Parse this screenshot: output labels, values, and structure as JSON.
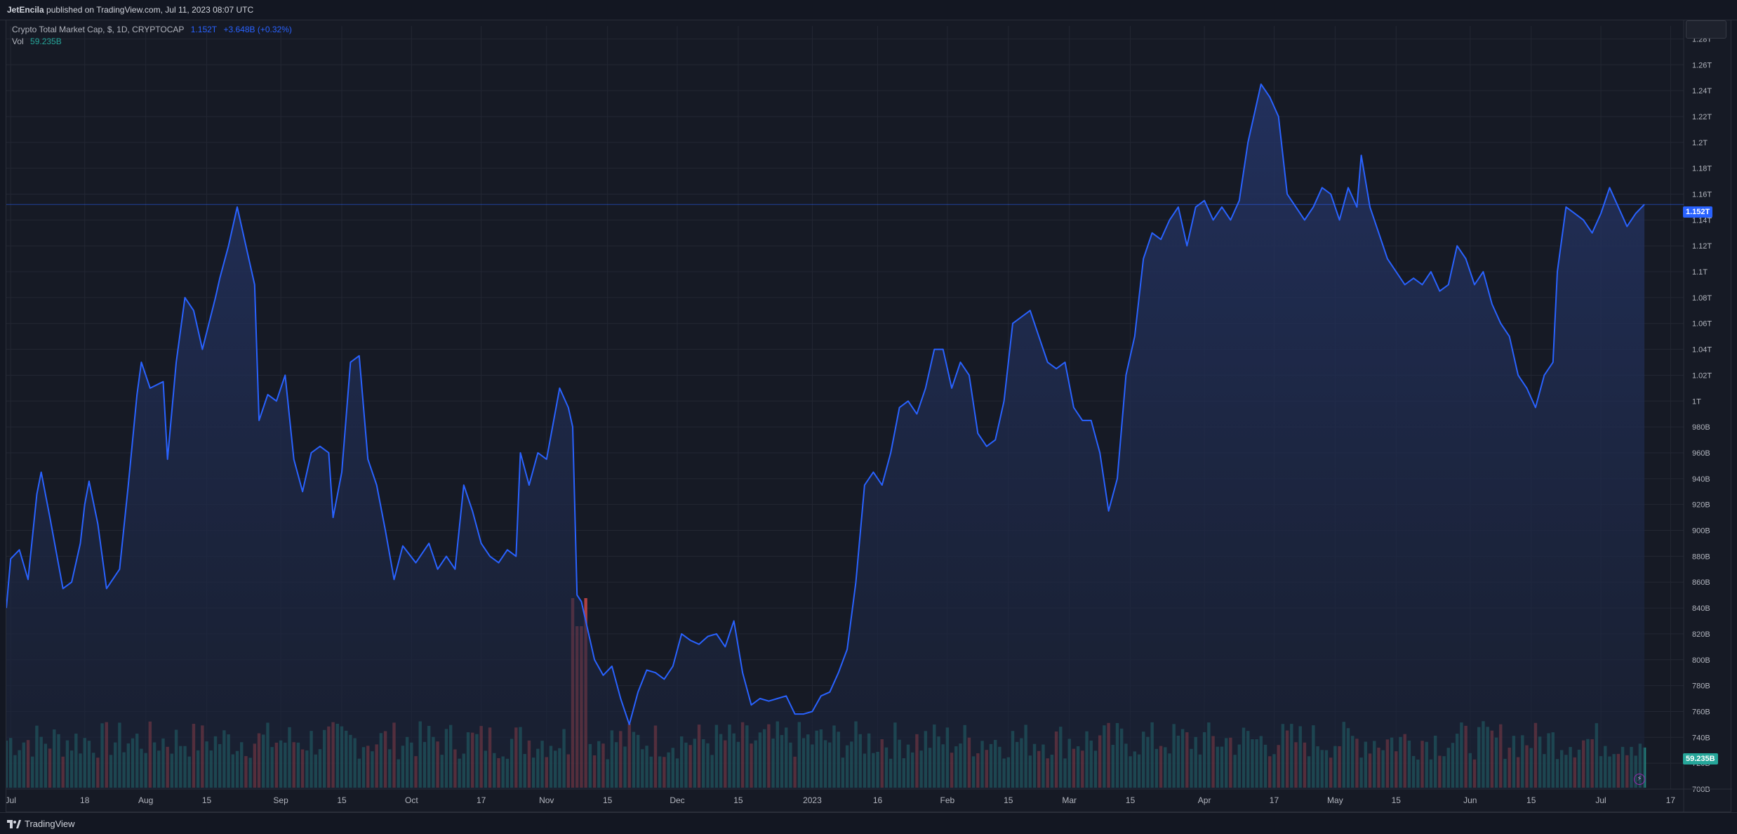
{
  "header": {
    "author": "JetEncila",
    "published_text": "published on TradingView.com, Jul 11, 2023 08:07 UTC"
  },
  "legend": {
    "symbol": "Crypto Total Market Cap, $, 1D, CRYPTOCAP",
    "price": "1.152T",
    "change": "+3.648B (+0.32%)",
    "vol_label": "Vol",
    "vol_value": "59.235B"
  },
  "price_tag": "1.152T",
  "vol_tag": "59.235B",
  "footer": {
    "logo_text": "TradingView",
    "bolt_icon": "lightning-icon"
  },
  "colors": {
    "line": "#2962ff",
    "fill": "#1c2850",
    "volume_up": "#26a69a",
    "volume_down": "#ef5350",
    "background": "#161a25",
    "grid": "#232733"
  },
  "chart_data": {
    "type": "area",
    "title": "Crypto Total Market Cap, $, 1D, CRYPTOCAP",
    "y_unit": "$",
    "ylim": [
      700000000000,
      1290000000000
    ],
    "y_ticks": [
      "1.28T",
      "1.26T",
      "1.24T",
      "1.22T",
      "1.2T",
      "1.18T",
      "1.16T",
      "1.14T",
      "1.12T",
      "1.1T",
      "1.08T",
      "1.06T",
      "1.04T",
      "1.02T",
      "1T",
      "980B",
      "960B",
      "940B",
      "920B",
      "900B",
      "880B",
      "860B",
      "840B",
      "820B",
      "800B",
      "780B",
      "760B",
      "740B",
      "720B",
      "700B"
    ],
    "y_tick_values": [
      1280,
      1260,
      1240,
      1220,
      1200,
      1180,
      1160,
      1140,
      1120,
      1100,
      1080,
      1060,
      1040,
      1020,
      1000,
      980,
      960,
      940,
      920,
      900,
      880,
      860,
      840,
      820,
      800,
      780,
      760,
      740,
      720,
      700
    ],
    "x_range": [
      "2022-06-30",
      "2023-07-20"
    ],
    "x_ticks": [
      {
        "label": "Jul",
        "date": "2022-07-01"
      },
      {
        "label": "18",
        "date": "2022-07-18"
      },
      {
        "label": "Aug",
        "date": "2022-08-01"
      },
      {
        "label": "15",
        "date": "2022-08-15"
      },
      {
        "label": "Sep",
        "date": "2022-09-01"
      },
      {
        "label": "15",
        "date": "2022-09-15"
      },
      {
        "label": "Oct",
        "date": "2022-10-01"
      },
      {
        "label": "17",
        "date": "2022-10-17"
      },
      {
        "label": "Nov",
        "date": "2022-11-01"
      },
      {
        "label": "15",
        "date": "2022-11-15"
      },
      {
        "label": "Dec",
        "date": "2022-12-01"
      },
      {
        "label": "15",
        "date": "2022-12-15"
      },
      {
        "label": "2023",
        "date": "2023-01-01"
      },
      {
        "label": "16",
        "date": "2023-01-16"
      },
      {
        "label": "Feb",
        "date": "2023-02-01"
      },
      {
        "label": "15",
        "date": "2023-02-15"
      },
      {
        "label": "Mar",
        "date": "2023-03-01"
      },
      {
        "label": "15",
        "date": "2023-03-15"
      },
      {
        "label": "Apr",
        "date": "2023-04-01"
      },
      {
        "label": "17",
        "date": "2023-04-17"
      },
      {
        "label": "May",
        "date": "2023-05-01"
      },
      {
        "label": "15",
        "date": "2023-05-15"
      },
      {
        "label": "Jun",
        "date": "2023-06-01"
      },
      {
        "label": "15",
        "date": "2023-06-15"
      },
      {
        "label": "Jul",
        "date": "2023-07-01"
      },
      {
        "label": "17",
        "date": "2023-07-17"
      }
    ],
    "series": [
      {
        "name": "Crypto Total Market Cap",
        "unit": "B",
        "points": [
          [
            "2022-06-30",
            840
          ],
          [
            "2022-07-01",
            878
          ],
          [
            "2022-07-03",
            885
          ],
          [
            "2022-07-05",
            862
          ],
          [
            "2022-07-07",
            928
          ],
          [
            "2022-07-08",
            945
          ],
          [
            "2022-07-10",
            910
          ],
          [
            "2022-07-13",
            855
          ],
          [
            "2022-07-15",
            860
          ],
          [
            "2022-07-17",
            890
          ],
          [
            "2022-07-18",
            920
          ],
          [
            "2022-07-19",
            938
          ],
          [
            "2022-07-21",
            905
          ],
          [
            "2022-07-23",
            855
          ],
          [
            "2022-07-26",
            870
          ],
          [
            "2022-07-28",
            935
          ],
          [
            "2022-07-30",
            1005
          ],
          [
            "2022-07-31",
            1030
          ],
          [
            "2022-08-02",
            1010
          ],
          [
            "2022-08-05",
            1015
          ],
          [
            "2022-08-06",
            955
          ],
          [
            "2022-08-08",
            1030
          ],
          [
            "2022-08-10",
            1080
          ],
          [
            "2022-08-12",
            1070
          ],
          [
            "2022-08-14",
            1040
          ],
          [
            "2022-08-17",
            1080
          ],
          [
            "2022-08-18",
            1095
          ],
          [
            "2022-08-20",
            1120
          ],
          [
            "2022-08-22",
            1150
          ],
          [
            "2022-08-24",
            1120
          ],
          [
            "2022-08-26",
            1090
          ],
          [
            "2022-08-27",
            985
          ],
          [
            "2022-08-29",
            1005
          ],
          [
            "2022-08-31",
            1000
          ],
          [
            "2022-09-02",
            1020
          ],
          [
            "2022-09-04",
            955
          ],
          [
            "2022-09-06",
            930
          ],
          [
            "2022-09-08",
            960
          ],
          [
            "2022-09-10",
            965
          ],
          [
            "2022-09-12",
            960
          ],
          [
            "2022-09-13",
            910
          ],
          [
            "2022-09-15",
            945
          ],
          [
            "2022-09-17",
            1030
          ],
          [
            "2022-09-19",
            1035
          ],
          [
            "2022-09-21",
            955
          ],
          [
            "2022-09-23",
            935
          ],
          [
            "2022-09-25",
            900
          ],
          [
            "2022-09-27",
            862
          ],
          [
            "2022-09-29",
            888
          ],
          [
            "2022-10-02",
            875
          ],
          [
            "2022-10-05",
            890
          ],
          [
            "2022-10-07",
            870
          ],
          [
            "2022-10-09",
            880
          ],
          [
            "2022-10-11",
            870
          ],
          [
            "2022-10-13",
            935
          ],
          [
            "2022-10-15",
            915
          ],
          [
            "2022-10-17",
            890
          ],
          [
            "2022-10-19",
            880
          ],
          [
            "2022-10-21",
            875
          ],
          [
            "2022-10-23",
            885
          ],
          [
            "2022-10-25",
            880
          ],
          [
            "2022-10-26",
            960
          ],
          [
            "2022-10-28",
            935
          ],
          [
            "2022-10-30",
            960
          ],
          [
            "2022-11-01",
            955
          ],
          [
            "2022-11-04",
            1010
          ],
          [
            "2022-11-06",
            995
          ],
          [
            "2022-11-07",
            980
          ],
          [
            "2022-11-08",
            850
          ],
          [
            "2022-11-09",
            845
          ],
          [
            "2022-11-10",
            830
          ],
          [
            "2022-11-12",
            800
          ],
          [
            "2022-11-14",
            788
          ],
          [
            "2022-11-16",
            795
          ],
          [
            "2022-11-18",
            770
          ],
          [
            "2022-11-20",
            750
          ],
          [
            "2022-11-22",
            775
          ],
          [
            "2022-11-24",
            792
          ],
          [
            "2022-11-26",
            790
          ],
          [
            "2022-11-28",
            785
          ],
          [
            "2022-11-30",
            795
          ],
          [
            "2022-12-02",
            820
          ],
          [
            "2022-12-04",
            815
          ],
          [
            "2022-12-06",
            812
          ],
          [
            "2022-12-08",
            818
          ],
          [
            "2022-12-10",
            820
          ],
          [
            "2022-12-12",
            810
          ],
          [
            "2022-12-14",
            830
          ],
          [
            "2022-12-16",
            790
          ],
          [
            "2022-12-18",
            765
          ],
          [
            "2022-12-20",
            770
          ],
          [
            "2022-12-22",
            768
          ],
          [
            "2022-12-24",
            770
          ],
          [
            "2022-12-26",
            772
          ],
          [
            "2022-12-28",
            758
          ],
          [
            "2022-12-30",
            758
          ],
          [
            "2023-01-01",
            760
          ],
          [
            "2023-01-03",
            772
          ],
          [
            "2023-01-05",
            775
          ],
          [
            "2023-01-07",
            790
          ],
          [
            "2023-01-09",
            808
          ],
          [
            "2023-01-11",
            860
          ],
          [
            "2023-01-13",
            935
          ],
          [
            "2023-01-15",
            945
          ],
          [
            "2023-01-17",
            935
          ],
          [
            "2023-01-19",
            960
          ],
          [
            "2023-01-21",
            995
          ],
          [
            "2023-01-23",
            1000
          ],
          [
            "2023-01-25",
            990
          ],
          [
            "2023-01-27",
            1010
          ],
          [
            "2023-01-29",
            1040
          ],
          [
            "2023-01-31",
            1040
          ],
          [
            "2023-02-02",
            1010
          ],
          [
            "2023-02-04",
            1030
          ],
          [
            "2023-02-06",
            1020
          ],
          [
            "2023-02-08",
            975
          ],
          [
            "2023-02-10",
            965
          ],
          [
            "2023-02-12",
            970
          ],
          [
            "2023-02-14",
            1000
          ],
          [
            "2023-02-16",
            1060
          ],
          [
            "2023-02-18",
            1065
          ],
          [
            "2023-02-20",
            1070
          ],
          [
            "2023-02-22",
            1050
          ],
          [
            "2023-02-24",
            1030
          ],
          [
            "2023-02-26",
            1025
          ],
          [
            "2023-02-28",
            1030
          ],
          [
            "2023-03-02",
            995
          ],
          [
            "2023-03-04",
            985
          ],
          [
            "2023-03-06",
            985
          ],
          [
            "2023-03-08",
            960
          ],
          [
            "2023-03-10",
            915
          ],
          [
            "2023-03-12",
            940
          ],
          [
            "2023-03-14",
            1020
          ],
          [
            "2023-03-16",
            1050
          ],
          [
            "2023-03-18",
            1110
          ],
          [
            "2023-03-20",
            1130
          ],
          [
            "2023-03-22",
            1125
          ],
          [
            "2023-03-24",
            1140
          ],
          [
            "2023-03-26",
            1150
          ],
          [
            "2023-03-28",
            1120
          ],
          [
            "2023-03-30",
            1150
          ],
          [
            "2023-04-01",
            1155
          ],
          [
            "2023-04-03",
            1140
          ],
          [
            "2023-04-05",
            1150
          ],
          [
            "2023-04-07",
            1140
          ],
          [
            "2023-04-09",
            1155
          ],
          [
            "2023-04-11",
            1200
          ],
          [
            "2023-04-13",
            1230
          ],
          [
            "2023-04-14",
            1245
          ],
          [
            "2023-04-16",
            1235
          ],
          [
            "2023-04-18",
            1220
          ],
          [
            "2023-04-20",
            1160
          ],
          [
            "2023-04-22",
            1150
          ],
          [
            "2023-04-24",
            1140
          ],
          [
            "2023-04-26",
            1150
          ],
          [
            "2023-04-28",
            1165
          ],
          [
            "2023-04-30",
            1160
          ],
          [
            "2023-05-02",
            1140
          ],
          [
            "2023-05-04",
            1165
          ],
          [
            "2023-05-06",
            1150
          ],
          [
            "2023-05-07",
            1190
          ],
          [
            "2023-05-09",
            1150
          ],
          [
            "2023-05-11",
            1130
          ],
          [
            "2023-05-13",
            1110
          ],
          [
            "2023-05-15",
            1100
          ],
          [
            "2023-05-17",
            1090
          ],
          [
            "2023-05-19",
            1095
          ],
          [
            "2023-05-21",
            1090
          ],
          [
            "2023-05-23",
            1100
          ],
          [
            "2023-05-25",
            1085
          ],
          [
            "2023-05-27",
            1090
          ],
          [
            "2023-05-29",
            1120
          ],
          [
            "2023-05-31",
            1110
          ],
          [
            "2023-06-02",
            1090
          ],
          [
            "2023-06-04",
            1100
          ],
          [
            "2023-06-06",
            1075
          ],
          [
            "2023-06-08",
            1060
          ],
          [
            "2023-06-10",
            1050
          ],
          [
            "2023-06-12",
            1020
          ],
          [
            "2023-06-14",
            1010
          ],
          [
            "2023-06-16",
            995
          ],
          [
            "2023-06-18",
            1020
          ],
          [
            "2023-06-20",
            1030
          ],
          [
            "2023-06-21",
            1100
          ],
          [
            "2023-06-23",
            1150
          ],
          [
            "2023-06-25",
            1145
          ],
          [
            "2023-06-27",
            1140
          ],
          [
            "2023-06-29",
            1130
          ],
          [
            "2023-07-01",
            1145
          ],
          [
            "2023-07-03",
            1165
          ],
          [
            "2023-07-05",
            1150
          ],
          [
            "2023-07-07",
            1135
          ],
          [
            "2023-07-09",
            1145
          ],
          [
            "2023-07-11",
            1152
          ]
        ]
      }
    ],
    "volume": {
      "name": "Vol",
      "last": "59.235B",
      "bars_note": "daily volume bars colored by direction",
      "max_scale": 100
    }
  }
}
